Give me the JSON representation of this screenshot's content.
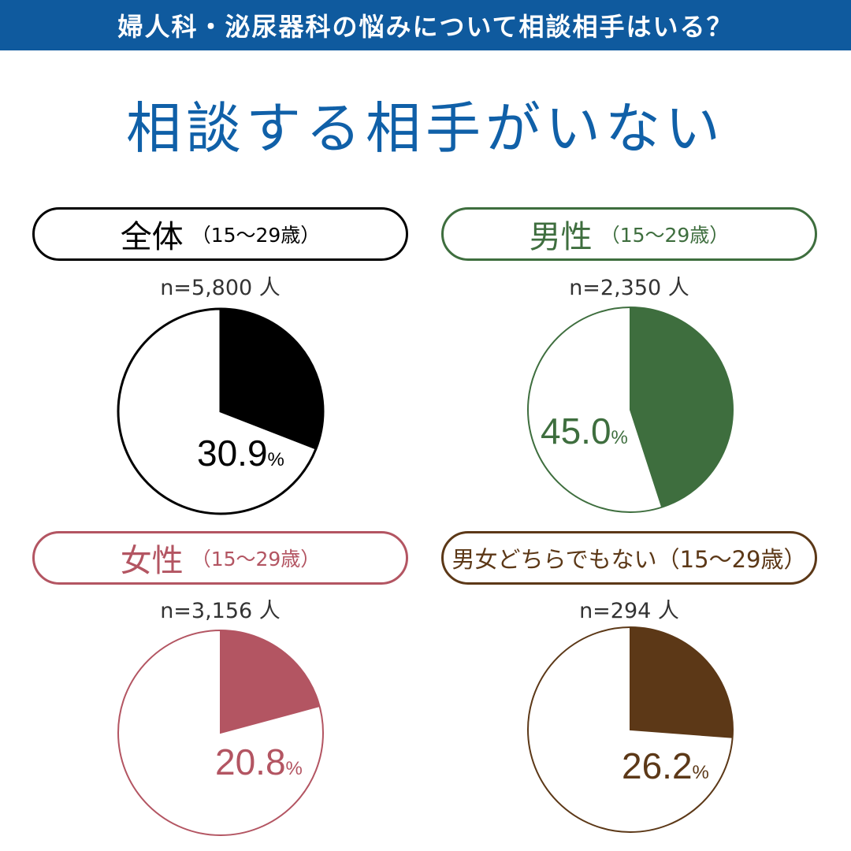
{
  "banner": {
    "text": "婦人科・泌尿器科の悩みについて相談相手はいる？",
    "bg": "#0f5a9e"
  },
  "headline": {
    "text": "相談する相手がいない",
    "color": "#1060a8"
  },
  "chart_data": [
    {
      "type": "pie",
      "title": "全体",
      "subtitle": "（15～29歳）",
      "n_label": "n=5,800 人",
      "values": [
        30.9,
        69.1
      ],
      "value_label": "30.9",
      "unit": "%",
      "color": "#000000"
    },
    {
      "type": "pie",
      "title": "男性",
      "subtitle": "（15～29歳）",
      "n_label": "n=2,350 人",
      "values": [
        45.0,
        55.0
      ],
      "value_label": "45.0",
      "unit": "%",
      "color": "#3e6e3e"
    },
    {
      "type": "pie",
      "title": "女性",
      "subtitle": "（15～29歳）",
      "n_label": "n=3,156 人",
      "values": [
        20.8,
        79.2
      ],
      "value_label": "20.8",
      "unit": "%",
      "color": "#b35562"
    },
    {
      "type": "pie",
      "title": "男女どちらでもない（15～29歳）",
      "subtitle": "",
      "n_label": "n=294 人",
      "values": [
        26.2,
        73.8
      ],
      "value_label": "26.2",
      "unit": "%",
      "color": "#5c3817"
    }
  ]
}
